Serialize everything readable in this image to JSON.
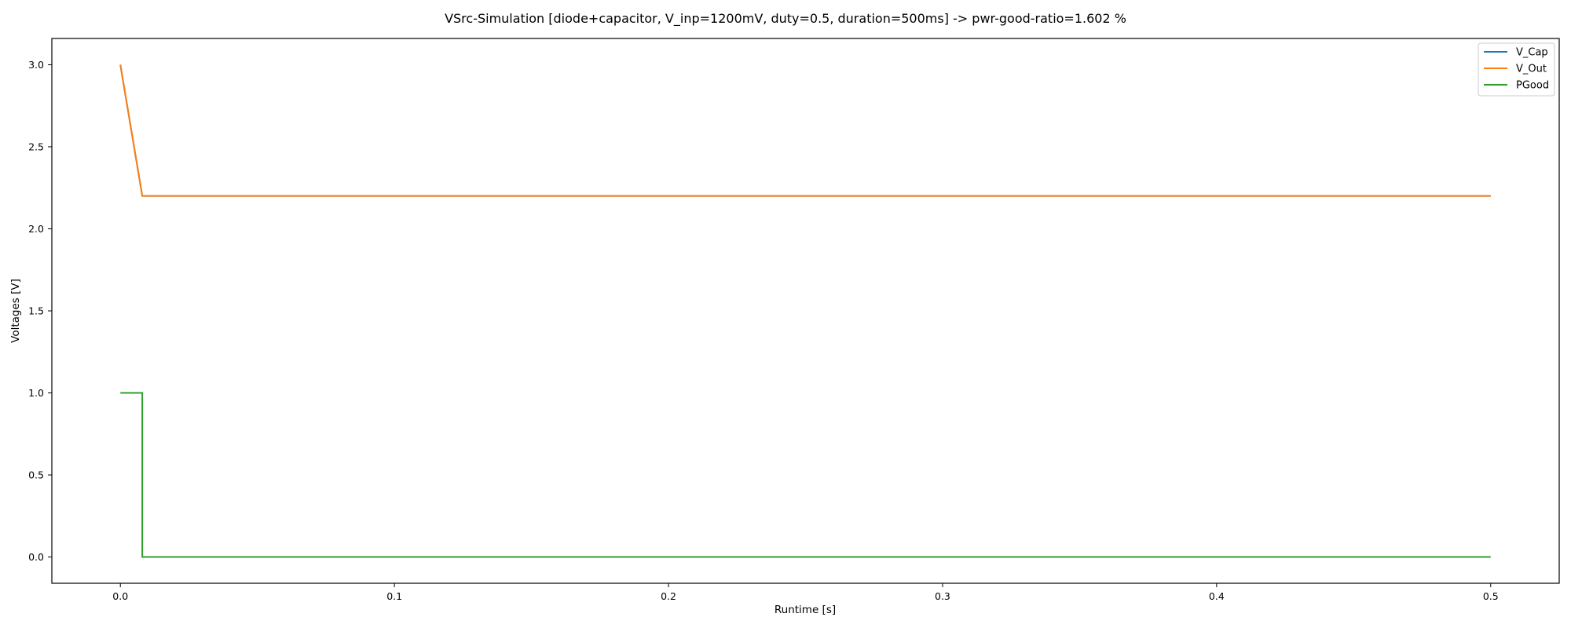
{
  "chart_data": {
    "type": "line",
    "title": "VSrc-Simulation [diode+capacitor, V_inp=1200mV, duty=0.5, duration=500ms] -> pwr-good-ratio=1.602 %",
    "xlabel": "Runtime [s]",
    "ylabel": "Voltages [V]",
    "xlim": [
      -0.025,
      0.525
    ],
    "ylim": [
      -0.16,
      3.16
    ],
    "xticks": [
      0.0,
      0.1,
      0.2,
      0.3,
      0.4,
      0.5
    ],
    "xtick_labels": [
      "0.0",
      "0.1",
      "0.2",
      "0.3",
      "0.4",
      "0.5"
    ],
    "yticks": [
      0.0,
      0.5,
      1.0,
      1.5,
      2.0,
      2.5,
      3.0
    ],
    "ytick_labels": [
      "0.0",
      "0.5",
      "1.0",
      "1.5",
      "2.0",
      "2.5",
      "3.0"
    ],
    "grid": false,
    "legend_position": "top-right",
    "series": [
      {
        "name": "V_Cap",
        "color": "#1f77b4",
        "x": [
          0.0,
          0.008,
          0.5
        ],
        "y": [
          3.0,
          2.2,
          2.2
        ]
      },
      {
        "name": "V_Out",
        "color": "#ff7f0e",
        "x": [
          0.0,
          0.008,
          0.5
        ],
        "y": [
          3.0,
          2.2,
          2.2
        ]
      },
      {
        "name": "PGood",
        "color": "#2ca02c",
        "x": [
          0.0,
          0.008,
          0.008,
          0.5
        ],
        "y": [
          1.0,
          1.0,
          0.0,
          0.0
        ]
      }
    ]
  }
}
